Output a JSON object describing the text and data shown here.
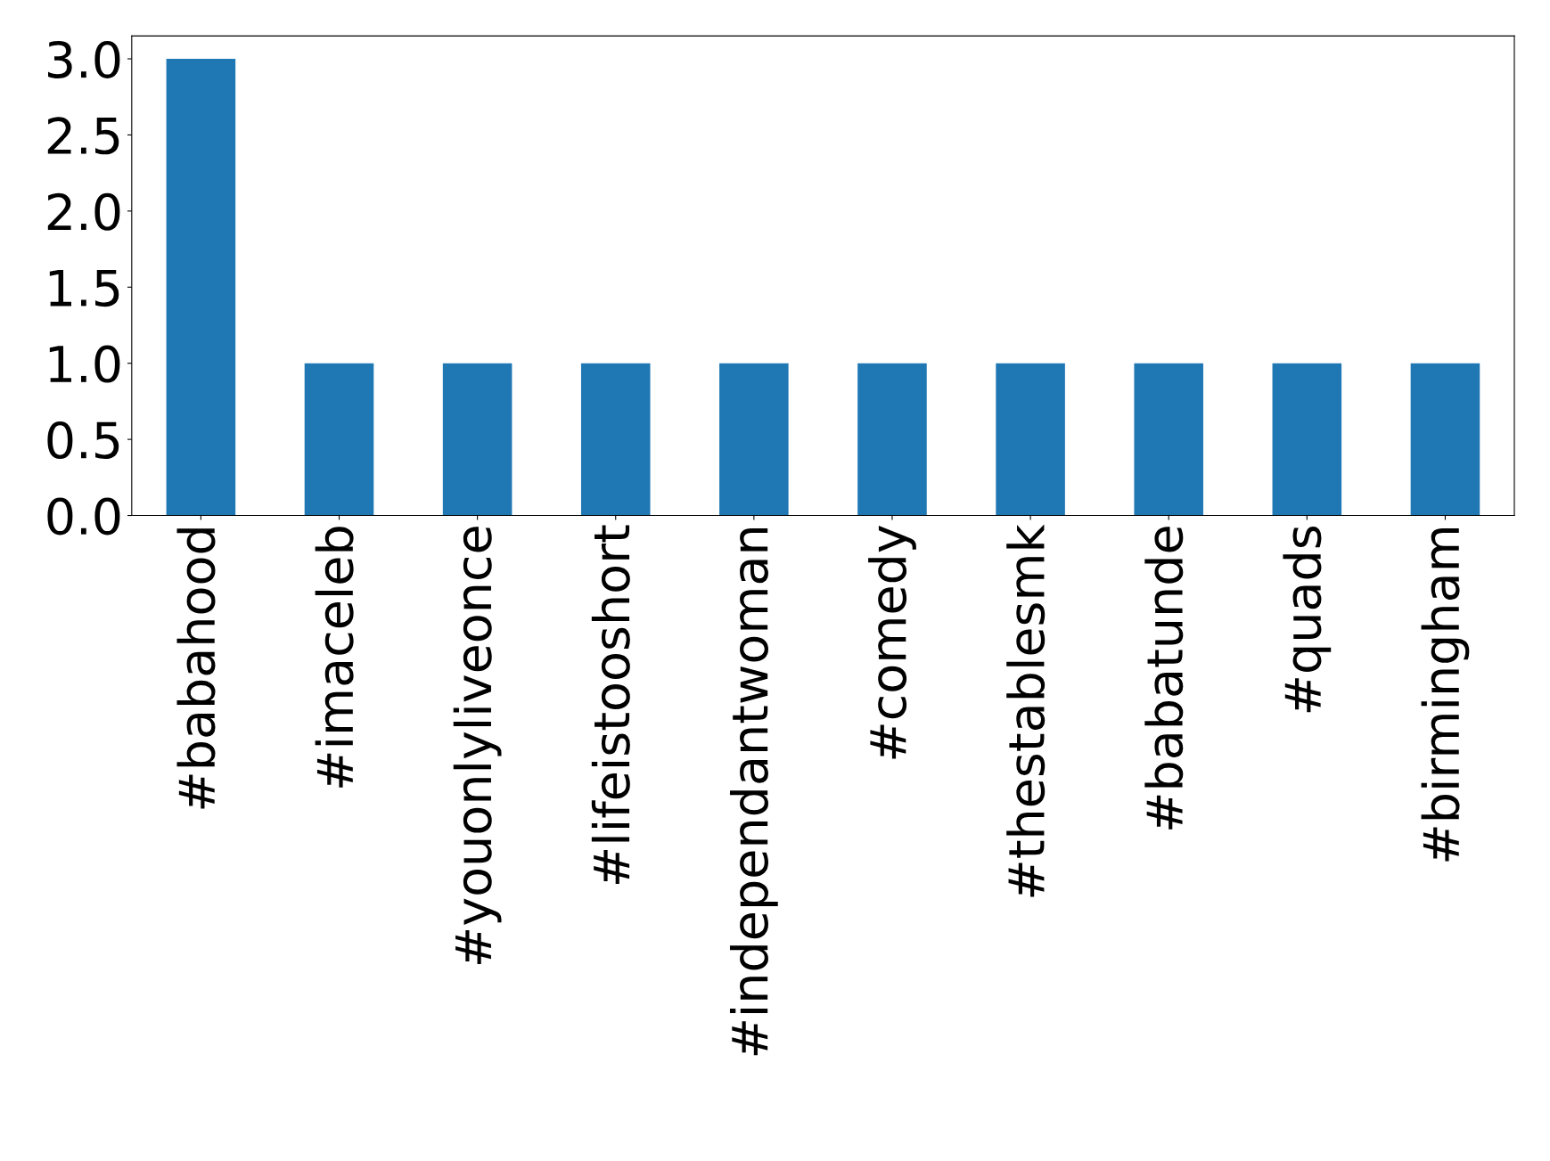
{
  "chart_data": {
    "type": "bar",
    "categories": [
      "#babahood",
      "#imaceleb",
      "#youonlyliveonce",
      "#lifeistooshort",
      "#independantwoman",
      "#comedy",
      "#thestablesmk",
      "#babatunde",
      "#quads",
      "#birmingham"
    ],
    "values": [
      3,
      1,
      1,
      1,
      1,
      1,
      1,
      1,
      1,
      1
    ],
    "color": "#1f77b4",
    "ylim": [
      0,
      3.15
    ],
    "yticks": [
      {
        "value": 0,
        "label": "0.0"
      },
      {
        "value": 0.5,
        "label": "0.5"
      },
      {
        "value": 1,
        "label": "1.0"
      },
      {
        "value": 1.5,
        "label": "1.5"
      },
      {
        "value": 2,
        "label": "2.0"
      },
      {
        "value": 2.5,
        "label": "2.5"
      },
      {
        "value": 3,
        "label": "3.0"
      }
    ],
    "grid": false,
    "legend": false
  }
}
